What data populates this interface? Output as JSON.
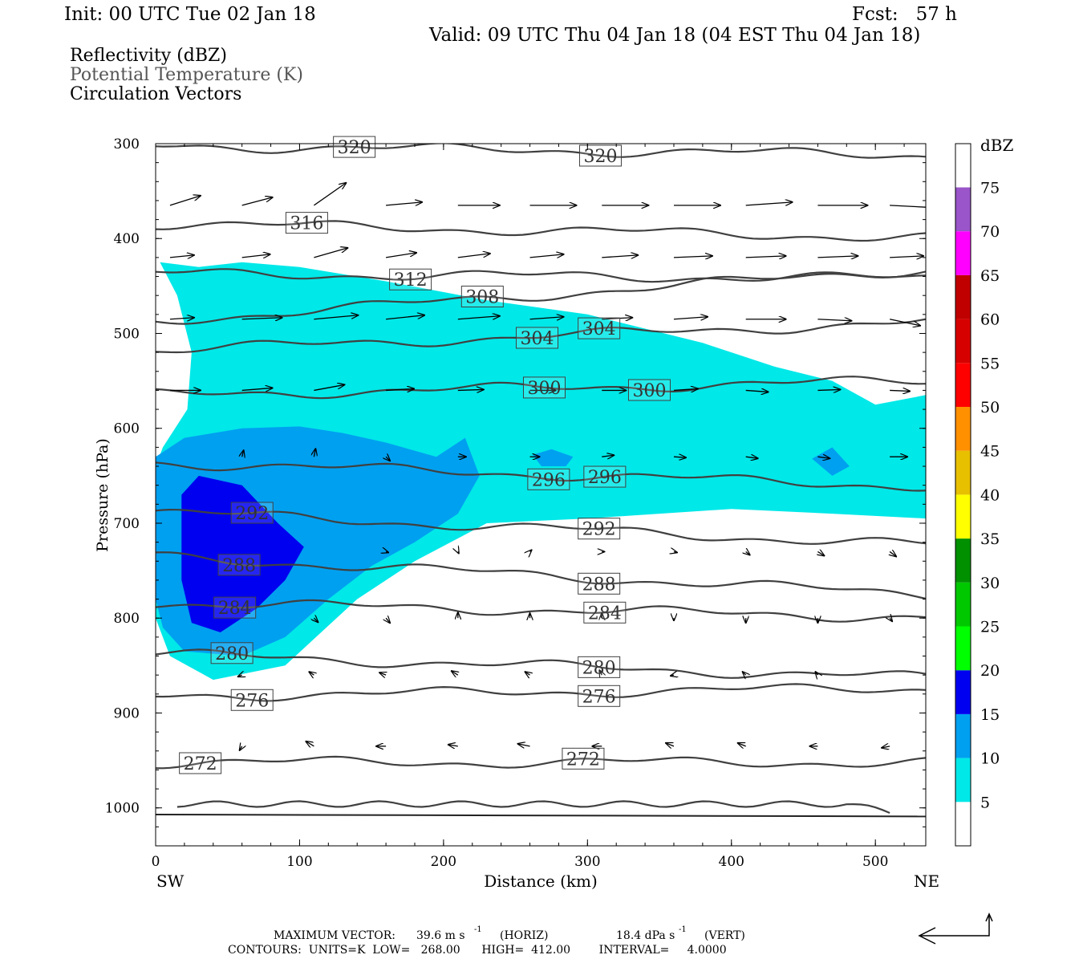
{
  "header": {
    "init": "Init: 00 UTC Tue 02 Jan 18",
    "fcst": "Fcst:   57 h",
    "valid": "Valid: 09 UTC Thu 04 Jan 18 (04 EST Thu 04 Jan 18)"
  },
  "legend": {
    "line1": "Reflectivity (dBZ)",
    "line2": "Potential Temperature (K)",
    "line3": "Circulation Vectors"
  },
  "footer": {
    "max_vector_label": "MAXIMUM VECTOR:",
    "max_vector_horiz": "39.6 m s",
    "horiz_tag": "(HORIZ)",
    "max_vector_vert": "18.4 dPa s",
    "vert_tag": "(VERT)",
    "exponent": "-1",
    "contours": "CONTOURS:  UNITS=K  LOW=   268.00      HIGH=  412.00        INTERVAL=     4.0000"
  },
  "chart_data": {
    "type": "heatmap",
    "title": "",
    "xlabel": "Distance (km)",
    "ylabel": "Pressure (hPa)",
    "x_ticks": [
      "0",
      "100",
      "200",
      "300",
      "400",
      "500"
    ],
    "y_ticks": [
      "300",
      "400",
      "500",
      "600",
      "700",
      "800",
      "900",
      "1000"
    ],
    "xlim": [
      0,
      535
    ],
    "ylim": [
      1040,
      300
    ],
    "x_end_labels": {
      "left": "SW",
      "right": "NE"
    },
    "grid": false,
    "colorbar": {
      "unit": "dBZ",
      "levels": [
        "5",
        "10",
        "15",
        "20",
        "25",
        "30",
        "35",
        "40",
        "45",
        "50",
        "55",
        "60",
        "65",
        "70",
        "75"
      ],
      "colors": [
        "#00e8e8",
        "#00a0f0",
        "#0000f0",
        "#00ff00",
        "#00c800",
        "#009000",
        "#ffff00",
        "#e7c000",
        "#ff9000",
        "#ff0000",
        "#d60000",
        "#c00000",
        "#ff00ff",
        "#9955c9",
        "#ffffff"
      ]
    },
    "reflectivity_regions": [
      {
        "dbz": 5,
        "outline": [
          [
            3,
            425
          ],
          [
            15,
            460
          ],
          [
            25,
            520
          ],
          [
            22,
            580
          ],
          [
            5,
            620
          ],
          [
            0,
            640
          ],
          [
            0,
            800
          ],
          [
            10,
            840
          ],
          [
            40,
            865
          ],
          [
            90,
            850
          ],
          [
            140,
            780
          ],
          [
            180,
            740
          ],
          [
            230,
            700
          ],
          [
            300,
            695
          ],
          [
            400,
            685
          ],
          [
            470,
            690
          ],
          [
            535,
            695
          ],
          [
            535,
            565
          ],
          [
            500,
            575
          ],
          [
            470,
            550
          ],
          [
            430,
            535
          ],
          [
            380,
            510
          ],
          [
            300,
            480
          ],
          [
            230,
            465
          ],
          [
            160,
            445
          ],
          [
            100,
            430
          ],
          [
            60,
            425
          ],
          [
            30,
            430
          ]
        ]
      },
      {
        "dbz": 10,
        "outline": [
          [
            0,
            630
          ],
          [
            20,
            610
          ],
          [
            60,
            600
          ],
          [
            100,
            598
          ],
          [
            130,
            605
          ],
          [
            160,
            615
          ],
          [
            195,
            630
          ],
          [
            215,
            610
          ],
          [
            225,
            650
          ],
          [
            210,
            690
          ],
          [
            180,
            720
          ],
          [
            150,
            745
          ],
          [
            120,
            780
          ],
          [
            90,
            820
          ],
          [
            60,
            840
          ],
          [
            20,
            835
          ],
          [
            5,
            810
          ],
          [
            0,
            780
          ]
        ]
      },
      {
        "dbz": 10,
        "outline": [
          [
            262,
            628
          ],
          [
            275,
            622
          ],
          [
            290,
            630
          ],
          [
            285,
            640
          ],
          [
            268,
            640
          ]
        ]
      },
      {
        "dbz": 10,
        "outline": [
          [
            456,
            632
          ],
          [
            470,
            620
          ],
          [
            482,
            640
          ],
          [
            470,
            650
          ]
        ]
      },
      {
        "dbz": 15,
        "outline": [
          [
            18,
            670
          ],
          [
            30,
            650
          ],
          [
            60,
            660
          ],
          [
            85,
            700
          ],
          [
            103,
            725
          ],
          [
            90,
            760
          ],
          [
            70,
            790
          ],
          [
            45,
            815
          ],
          [
            25,
            805
          ],
          [
            18,
            760
          ]
        ]
      }
    ],
    "theta_contours": [
      {
        "value": 320,
        "label_x_km": [
          138,
          309
        ]
      },
      {
        "value": 316,
        "label_x_km": [
          105
        ]
      },
      {
        "value": 312,
        "label_x_km": [
          177
        ]
      },
      {
        "value": 308,
        "label_x_km": [
          227
        ]
      },
      {
        "value": 304,
        "label_x_km": [
          265,
          308
        ]
      },
      {
        "value": 300,
        "label_x_km": [
          270,
          343
        ]
      },
      {
        "value": 296,
        "label_x_km": [
          273,
          312
        ]
      },
      {
        "value": 292,
        "label_x_km": [
          67,
          308
        ]
      },
      {
        "value": 288,
        "label_x_km": [
          58,
          308
        ]
      },
      {
        "value": 284,
        "label_x_km": [
          55,
          312
        ]
      },
      {
        "value": 280,
        "label_x_km": [
          53,
          308
        ]
      },
      {
        "value": 276,
        "label_x_km": [
          67,
          308
        ]
      },
      {
        "value": 272,
        "label_x_km": [
          31,
          297
        ]
      }
    ],
    "reference_vectors": {
      "horiz_m_per_s": 39.6,
      "vert_dPa_per_s": 18.4
    }
  }
}
